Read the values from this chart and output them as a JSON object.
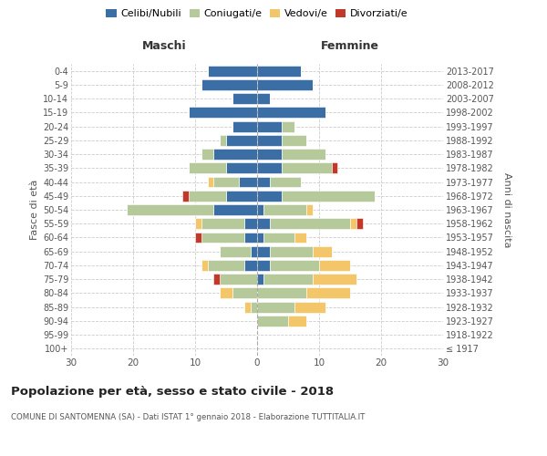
{
  "age_groups": [
    "100+",
    "95-99",
    "90-94",
    "85-89",
    "80-84",
    "75-79",
    "70-74",
    "65-69",
    "60-64",
    "55-59",
    "50-54",
    "45-49",
    "40-44",
    "35-39",
    "30-34",
    "25-29",
    "20-24",
    "15-19",
    "10-14",
    "5-9",
    "0-4"
  ],
  "birth_years": [
    "≤ 1917",
    "1918-1922",
    "1923-1927",
    "1928-1932",
    "1933-1937",
    "1938-1942",
    "1943-1947",
    "1948-1952",
    "1953-1957",
    "1958-1962",
    "1963-1967",
    "1968-1972",
    "1973-1977",
    "1978-1982",
    "1983-1987",
    "1988-1992",
    "1993-1997",
    "1998-2002",
    "2003-2007",
    "2008-2012",
    "2013-2017"
  ],
  "male": {
    "celibi": [
      0,
      0,
      0,
      0,
      0,
      0,
      2,
      1,
      2,
      2,
      7,
      5,
      3,
      5,
      7,
      5,
      4,
      11,
      4,
      9,
      8
    ],
    "coniugati": [
      0,
      0,
      0,
      1,
      4,
      6,
      6,
      5,
      7,
      7,
      14,
      6,
      4,
      6,
      2,
      1,
      0,
      0,
      0,
      0,
      0
    ],
    "vedovi": [
      0,
      0,
      0,
      1,
      2,
      0,
      1,
      0,
      0,
      1,
      0,
      0,
      1,
      0,
      0,
      0,
      0,
      0,
      0,
      0,
      0
    ],
    "divorziati": [
      0,
      0,
      0,
      0,
      0,
      1,
      0,
      0,
      1,
      0,
      0,
      1,
      0,
      0,
      0,
      0,
      0,
      0,
      0,
      0,
      0
    ]
  },
  "female": {
    "nubili": [
      0,
      0,
      0,
      0,
      0,
      1,
      2,
      2,
      1,
      2,
      1,
      4,
      2,
      4,
      4,
      4,
      4,
      11,
      2,
      9,
      7
    ],
    "coniugate": [
      0,
      0,
      5,
      6,
      8,
      8,
      8,
      7,
      5,
      13,
      7,
      15,
      5,
      8,
      7,
      4,
      2,
      0,
      0,
      0,
      0
    ],
    "vedove": [
      0,
      0,
      3,
      5,
      7,
      7,
      5,
      3,
      2,
      1,
      1,
      0,
      0,
      0,
      0,
      0,
      0,
      0,
      0,
      0,
      0
    ],
    "divorziate": [
      0,
      0,
      0,
      0,
      0,
      0,
      0,
      0,
      0,
      1,
      0,
      0,
      0,
      1,
      0,
      0,
      0,
      0,
      0,
      0,
      0
    ]
  },
  "colors": {
    "celibi": "#3a6ea5",
    "coniugati": "#b5c99a",
    "vedovi": "#f4c66a",
    "divorziati": "#c0392b"
  },
  "xlim": 30,
  "title": "Popolazione per età, sesso e stato civile - 2018",
  "subtitle": "COMUNE DI SANTOMENNA (SA) - Dati ISTAT 1° gennaio 2018 - Elaborazione TUTTITALIA.IT",
  "ylabel_left": "Fasce di età",
  "ylabel_right": "Anni di nascita",
  "xlabel_maschi": "Maschi",
  "xlabel_femmine": "Femmine"
}
